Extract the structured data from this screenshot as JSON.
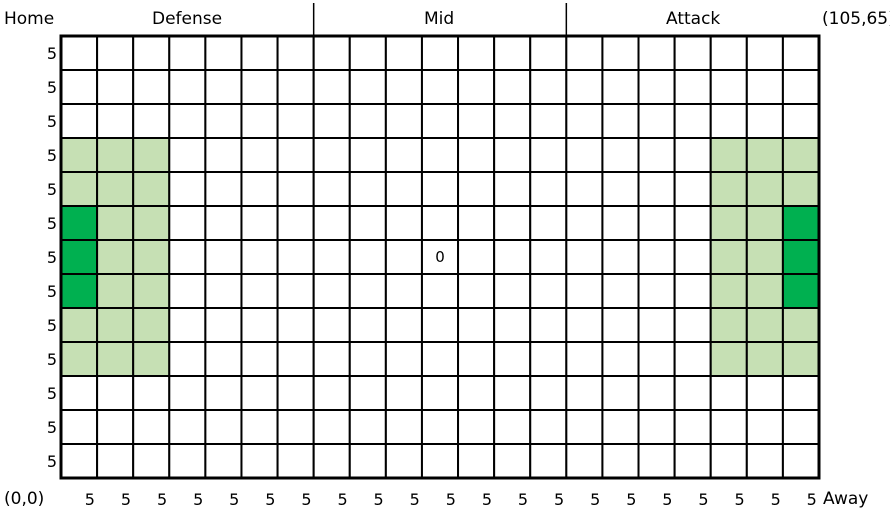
{
  "corner_labels": {
    "home": "Home",
    "top_right": "(105,65)",
    "origin": "(0,0)",
    "away": "Away"
  },
  "zones": [
    "Defense",
    "Mid",
    "Attack"
  ],
  "grid": {
    "columns": 21,
    "rows": 13,
    "column_labels": [
      "5",
      "5",
      "5",
      "5",
      "5",
      "5",
      "5",
      "5",
      "5",
      "5",
      "5",
      "5",
      "5",
      "5",
      "5",
      "5",
      "5",
      "5",
      "5",
      "5",
      "5"
    ],
    "row_labels": [
      "5",
      "5",
      "5",
      "5",
      "5",
      "5",
      "5",
      "5",
      "5",
      "5",
      "5",
      "5",
      "5"
    ],
    "center_marker": "0",
    "center_cell": {
      "col": 10,
      "row": 6
    },
    "colors": {
      "empty": "#ffffff",
      "light": "#c6e0b4",
      "dark": "#00b050",
      "line": "#000000"
    },
    "light_cells": [
      [
        0,
        3
      ],
      [
        1,
        3
      ],
      [
        2,
        3
      ],
      [
        0,
        4
      ],
      [
        1,
        4
      ],
      [
        2,
        4
      ],
      [
        1,
        5
      ],
      [
        2,
        5
      ],
      [
        1,
        6
      ],
      [
        2,
        6
      ],
      [
        1,
        7
      ],
      [
        2,
        7
      ],
      [
        0,
        8
      ],
      [
        1,
        8
      ],
      [
        2,
        8
      ],
      [
        0,
        9
      ],
      [
        1,
        9
      ],
      [
        2,
        9
      ],
      [
        18,
        3
      ],
      [
        19,
        3
      ],
      [
        20,
        3
      ],
      [
        18,
        4
      ],
      [
        19,
        4
      ],
      [
        20,
        4
      ],
      [
        18,
        5
      ],
      [
        19,
        5
      ],
      [
        18,
        6
      ],
      [
        19,
        6
      ],
      [
        18,
        7
      ],
      [
        19,
        7
      ],
      [
        18,
        8
      ],
      [
        19,
        8
      ],
      [
        20,
        8
      ],
      [
        18,
        9
      ],
      [
        19,
        9
      ],
      [
        20,
        9
      ]
    ],
    "dark_cells": [
      [
        0,
        5
      ],
      [
        0,
        6
      ],
      [
        0,
        7
      ],
      [
        20,
        5
      ],
      [
        20,
        6
      ],
      [
        20,
        7
      ]
    ]
  }
}
